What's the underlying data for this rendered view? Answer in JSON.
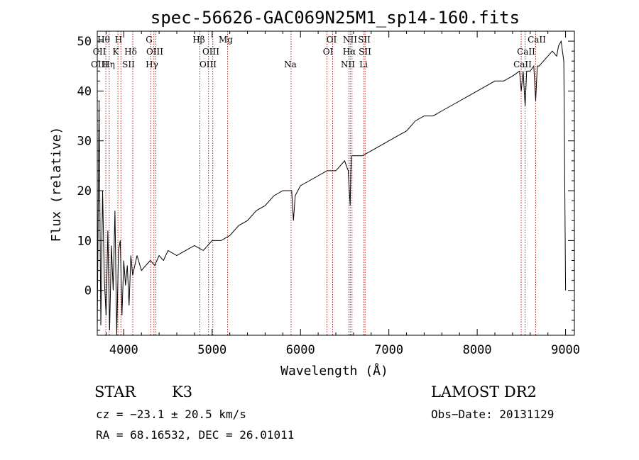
{
  "chart_data": {
    "type": "line",
    "title": "spec-56626-GAC069N25M1_sp14-160.fits",
    "xlabel": "Wavelength (Å)",
    "ylabel": "Flux (relative)",
    "xlim": [
      3700,
      9100
    ],
    "ylim": [
      -9,
      52
    ],
    "xticks": [
      4000,
      5000,
      6000,
      7000,
      8000,
      9000
    ],
    "yticks": [
      0,
      10,
      20,
      30,
      40,
      50
    ],
    "grid": false,
    "series": [
      {
        "x": [
          3700,
          3720,
          3740,
          3760,
          3780,
          3800,
          3820,
          3840,
          3860,
          3880,
          3900,
          3920,
          3940,
          3960,
          3980,
          4000,
          4020,
          4040,
          4060,
          4080,
          4100,
          4150,
          4200,
          4250,
          4300,
          4350,
          4400,
          4450,
          4500,
          4600,
          4700,
          4800,
          4900,
          5000,
          5100,
          5200,
          5300,
          5400,
          5500,
          5600,
          5700,
          5800,
          5900,
          5920,
          5940,
          6000,
          6100,
          6200,
          6300,
          6400,
          6500,
          6540,
          6562,
          6570,
          6580,
          6620,
          6700,
          6800,
          6900,
          7000,
          7100,
          7200,
          7300,
          7400,
          7500,
          7600,
          7700,
          7800,
          7900,
          8000,
          8100,
          8200,
          8300,
          8400,
          8480,
          8498,
          8520,
          8542,
          8560,
          8600,
          8640,
          8662,
          8680,
          8700,
          8750,
          8800,
          8850,
          8900,
          8920,
          8950,
          8980,
          9000
        ],
        "y": [
          -8,
          38,
          -7,
          20,
          2,
          -5,
          12,
          -8,
          9,
          0,
          16,
          -9,
          8,
          10,
          -5,
          6,
          1,
          5,
          -3,
          7,
          3,
          7,
          4,
          5,
          6,
          5,
          7,
          6,
          8,
          7,
          8,
          9,
          8,
          10,
          10,
          11,
          13,
          14,
          16,
          17,
          19,
          20,
          20,
          14,
          19,
          21,
          22,
          23,
          24,
          24,
          26,
          24,
          17,
          24,
          27,
          27,
          27,
          28,
          29,
          30,
          31,
          32,
          34,
          35,
          35,
          36,
          37,
          38,
          39,
          40,
          41,
          42,
          42,
          43,
          44,
          40,
          44,
          37,
          44,
          44,
          45,
          38,
          45,
          45,
          46,
          47,
          48,
          47,
          49,
          50,
          46,
          0
        ]
      }
    ],
    "annotations": [
      "Hθ",
      "H",
      "G",
      "Hβ",
      "Mg",
      "OI",
      "NII",
      "SII",
      "CaII",
      "CII",
      "K",
      "Hδ",
      "OIII",
      "OIII",
      "OI",
      "Hα",
      "SII",
      "CaII",
      "OIII",
      "Hη",
      "SII",
      "Hγ",
      "OIII",
      "Na",
      "NII",
      "Li",
      "CaII"
    ]
  },
  "info": {
    "class": "STAR",
    "subclass": "K3",
    "survey": "LAMOST DR2",
    "redshift": "cz = −23.1 ± 20.5 km/s",
    "obs_date": "Obs−Date: 20131129",
    "coords": "RA =  68.16532, DEC =  26.01011"
  },
  "colors": {
    "line": "#000000",
    "marker": "#b22222"
  }
}
